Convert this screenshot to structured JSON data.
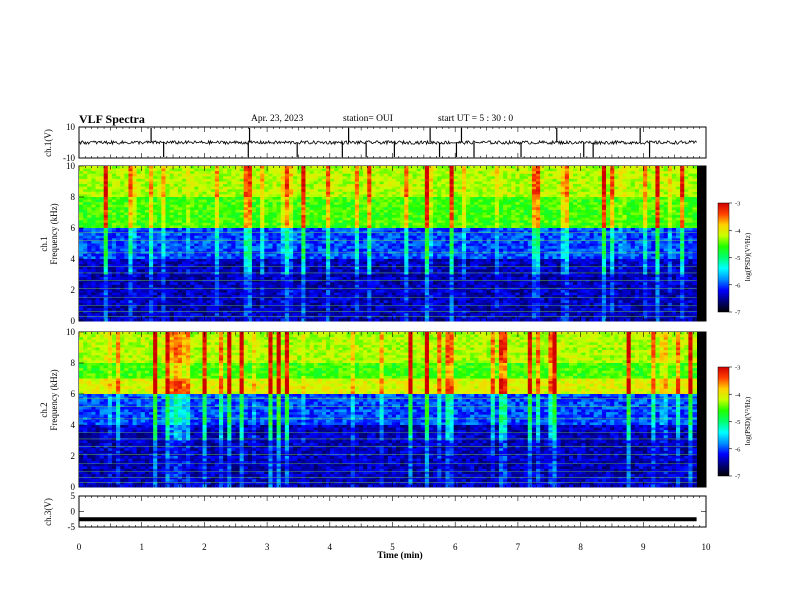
{
  "header": {
    "title": "VLF Spectra",
    "date": "Apr. 23, 2023",
    "station": "station= OUI",
    "start_ut": "start  UT =  5 : 30 : 0"
  },
  "colors": {
    "spectrum_stops": [
      "#000000",
      "#00007a",
      "#0000ff",
      "#0090ff",
      "#00ffff",
      "#00ff70",
      "#20ff00",
      "#c8ff00",
      "#ffd000",
      "#ff4000",
      "#d00000",
      "#ffffff"
    ]
  },
  "chart_data": [
    {
      "type": "line",
      "panel": "ch1-waveform",
      "ylabel": "ch.1(V)",
      "yticks": [
        "10",
        "-10"
      ],
      "ylim": [
        -10,
        10
      ],
      "xlim": [
        0,
        10
      ],
      "baseline": 0,
      "spikes_min": [
        1.15,
        1.35,
        2.7,
        2.72,
        3.48,
        4.2,
        4.3,
        4.58,
        5.03,
        5.6,
        5.75,
        6.02,
        6.1,
        6.3,
        7.05,
        7.62,
        8.05,
        8.2,
        8.95,
        9.1
      ]
    },
    {
      "type": "heatmap",
      "panel": "ch1-spectrogram",
      "ylabel": "ch.1\nFrequency (kHz)",
      "yticks": [
        "0",
        "2",
        "4",
        "6",
        "8",
        "10"
      ],
      "ylim": [
        0,
        10
      ],
      "xlim": [
        0,
        10
      ],
      "colorbar": {
        "label": "log(PSD)(V²/Hz)",
        "ticks": [
          "-3",
          "-4",
          "-5",
          "-6",
          "-7"
        ],
        "range": [
          -7,
          -3
        ]
      },
      "band_low_kHz": 6.0,
      "strong_band_kHz": null
    },
    {
      "type": "heatmap",
      "panel": "ch2-spectrogram",
      "ylabel": "ch.2\nFrequency (kHz)",
      "yticks": [
        "0",
        "2",
        "4",
        "6",
        "8",
        "10"
      ],
      "ylim": [
        0,
        10
      ],
      "xlim": [
        0,
        10
      ],
      "colorbar": {
        "label": "log(PSD)(V²/Hz)",
        "ticks": [
          "-3",
          "-4",
          "-5",
          "-6",
          "-7"
        ],
        "range": [
          -7,
          -3
        ]
      },
      "band_low_kHz": 6.0,
      "strong_band_kHz": 6.5
    },
    {
      "type": "line",
      "panel": "ch3-waveform",
      "ylabel": "ch.3(V)",
      "yticks": [
        "5",
        "0",
        "-5"
      ],
      "ylim": [
        -5,
        5
      ],
      "xlim": [
        0,
        10
      ],
      "baseline": -2.5
    }
  ],
  "xaxis": {
    "label": "Time (min)",
    "ticks": [
      "0",
      "1",
      "2",
      "3",
      "4",
      "5",
      "6",
      "7",
      "8",
      "9",
      "10"
    ],
    "data_end_min": 9.85
  }
}
